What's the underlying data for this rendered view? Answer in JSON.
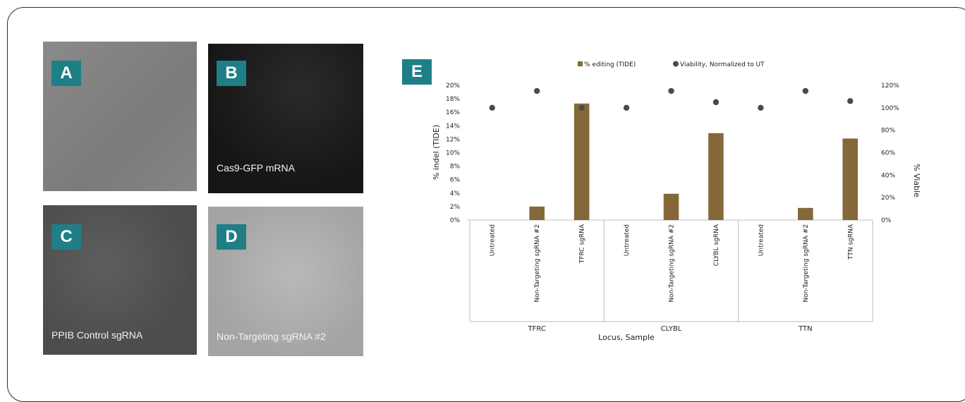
{
  "panels": [
    {
      "label": "A",
      "caption": ""
    },
    {
      "label": "B",
      "caption": "Cas9-GFP mRNA"
    },
    {
      "label": "C",
      "caption": "PPIB Control sgRNA"
    },
    {
      "label": "D",
      "caption": "Non-Targeting sgRNA #2"
    }
  ],
  "chart_label": "E",
  "colors": {
    "badge": "#1e7f87",
    "bar": "#85683a",
    "point": "#4a4a4a"
  },
  "chart_data": {
    "type": "bar",
    "xlabel": "Locus, Sample",
    "ylabel": "% indel (TIDE)",
    "y2label": "% Viable",
    "ylim": [
      0,
      20
    ],
    "y2lim": [
      0,
      120
    ],
    "yticks": [
      "0%",
      "2%",
      "4%",
      "6%",
      "8%",
      "10%",
      "12%",
      "14%",
      "16%",
      "18%",
      "20%"
    ],
    "y2ticks": [
      "0%",
      "20%",
      "40%",
      "60%",
      "80%",
      "100%",
      "120%"
    ],
    "legend_position": "top",
    "groups": [
      "TFRC",
      "CLYBL",
      "TTN"
    ],
    "categories": [
      "Untreated",
      "Non-Targeting sgRNA #2",
      "TFRC sgRNA",
      "Untreated",
      "Non-Targeting sgRNA #2",
      "CLYBL sgRNA",
      "Untreated",
      "Non-Targeting sgRNA #2",
      "TTN sgRNA"
    ],
    "series": [
      {
        "name": "% editing (TIDE)",
        "type": "bar",
        "axis": "left",
        "values": [
          0,
          2,
          17.3,
          0,
          3.9,
          12.9,
          0,
          1.8,
          12.1
        ]
      },
      {
        "name": "Viability, Normalized to UT",
        "type": "scatter",
        "axis": "right",
        "values": [
          100,
          115,
          100,
          100,
          115,
          105,
          100,
          115,
          106
        ]
      }
    ]
  }
}
